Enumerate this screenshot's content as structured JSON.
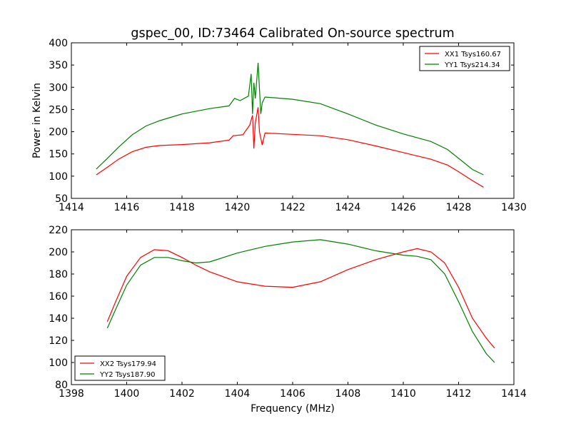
{
  "title": "gspec_00, ID:73464 Calibrated On-source spectrum",
  "chart_data": [
    {
      "type": "line",
      "xlabel": "",
      "ylabel": "Power in Kelvin",
      "xlim": [
        1414,
        1430
      ],
      "ylim": [
        50,
        400
      ],
      "xticks": [
        1414,
        1416,
        1418,
        1420,
        1422,
        1424,
        1426,
        1428,
        1430
      ],
      "yticks": [
        50,
        100,
        150,
        200,
        250,
        300,
        350,
        400
      ],
      "legend": "top-right",
      "series": [
        {
          "name": "XX1 Tsys160.67",
          "color": "#ff0000",
          "x": [
            1414.9,
            1415.3,
            1415.7,
            1416.2,
            1416.7,
            1417.2,
            1418,
            1419,
            1419.7,
            1419.85,
            1420.2,
            1420.45,
            1420.55,
            1420.6,
            1420.65,
            1420.75,
            1420.8,
            1420.9,
            1421,
            1422,
            1423,
            1424,
            1425,
            1426,
            1427,
            1427.6,
            1428,
            1428.5,
            1428.9
          ],
          "y": [
            103,
            120,
            138,
            155,
            165,
            169,
            171,
            175,
            181,
            191,
            193,
            215,
            237,
            162,
            220,
            255,
            200,
            170,
            197,
            194,
            191,
            182,
            168,
            153,
            138,
            125,
            110,
            90,
            75
          ]
        },
        {
          "name": "YY1 Tsys214.34",
          "color": "#008000",
          "x": [
            1414.9,
            1415.3,
            1415.7,
            1416.2,
            1416.7,
            1417.2,
            1418,
            1419,
            1419.7,
            1419.9,
            1420.1,
            1420.4,
            1420.5,
            1420.55,
            1420.6,
            1420.65,
            1420.75,
            1420.85,
            1420.9,
            1421,
            1422,
            1423,
            1424,
            1425,
            1426,
            1427,
            1427.6,
            1428,
            1428.5,
            1428.9
          ],
          "y": [
            116,
            140,
            165,
            193,
            213,
            225,
            240,
            252,
            258,
            275,
            270,
            280,
            330,
            240,
            310,
            275,
            355,
            240,
            265,
            278,
            273,
            263,
            240,
            215,
            195,
            178,
            160,
            140,
            115,
            103
          ]
        }
      ]
    },
    {
      "type": "line",
      "xlabel": "Frequency (MHz)",
      "ylabel": "",
      "xlim": [
        1398,
        1414
      ],
      "ylim": [
        80,
        220
      ],
      "xticks": [
        1398,
        1400,
        1402,
        1404,
        1406,
        1408,
        1410,
        1412,
        1414
      ],
      "yticks": [
        80,
        100,
        120,
        140,
        160,
        180,
        200,
        220
      ],
      "legend": "bottom-left",
      "series": [
        {
          "name": "XX2 Tsys179.94",
          "color": "#ff0000",
          "x": [
            1399.3,
            1399.6,
            1400,
            1400.5,
            1401,
            1401.5,
            1402,
            1402.5,
            1403,
            1404,
            1405,
            1406,
            1407,
            1408,
            1409,
            1410,
            1410.5,
            1411,
            1411.5,
            1412,
            1412.5,
            1413,
            1413.3
          ],
          "y": [
            137,
            155,
            178,
            195,
            202,
            201,
            195,
            188,
            182,
            173,
            169,
            168,
            173,
            184,
            193,
            200,
            203,
            200,
            190,
            168,
            140,
            122,
            113
          ]
        },
        {
          "name": "YY2 Tsys187.90",
          "color": "#008000",
          "x": [
            1399.3,
            1399.6,
            1400,
            1400.5,
            1401,
            1401.5,
            1402,
            1402.5,
            1403,
            1404,
            1405,
            1406,
            1407,
            1408,
            1409,
            1410,
            1410.5,
            1411,
            1411.5,
            1412,
            1412.5,
            1413,
            1413.3
          ],
          "y": [
            131,
            148,
            170,
            188,
            195,
            195,
            192,
            190,
            191,
            199,
            205,
            209,
            211,
            207,
            201,
            197,
            196,
            193,
            180,
            155,
            128,
            108,
            100
          ]
        }
      ]
    }
  ]
}
